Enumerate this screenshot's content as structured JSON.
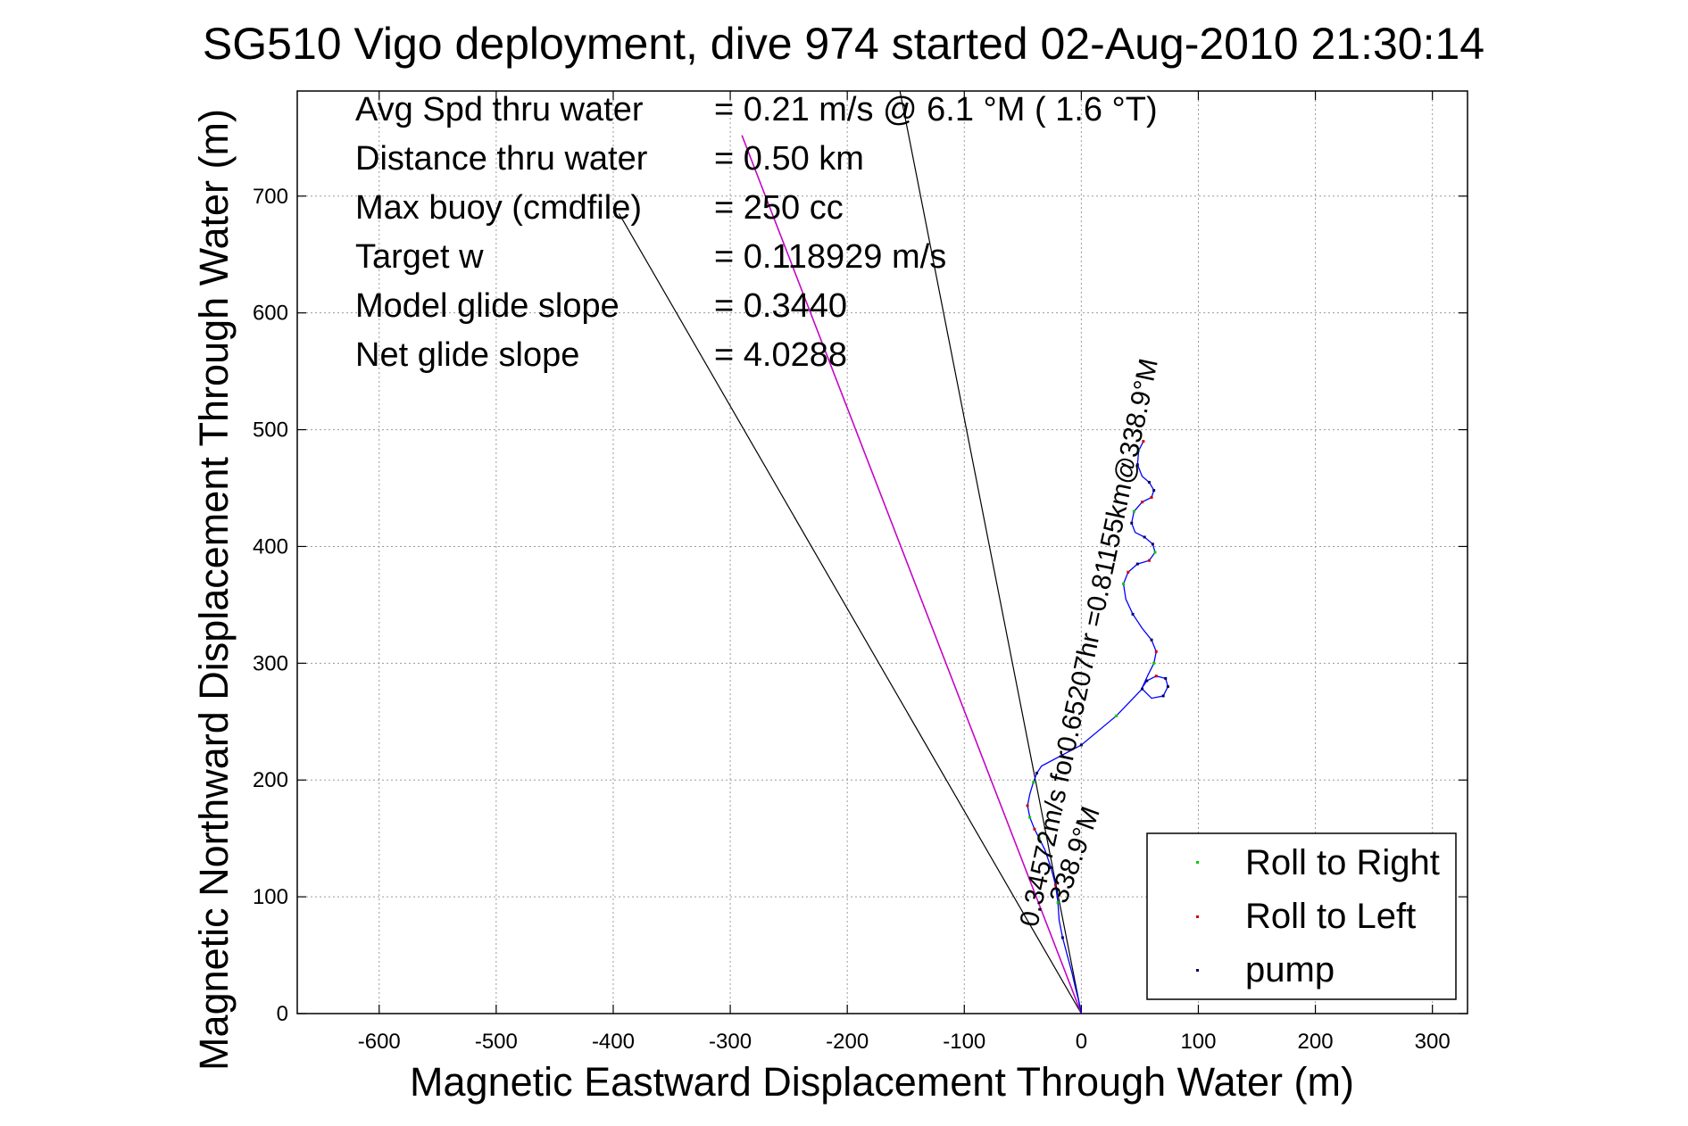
{
  "chart_data": {
    "type": "scatter",
    "title": "SG510 Vigo deployment, dive 974 started 02-Aug-2010 21:30:14",
    "xlabel": "Magnetic Eastward Displacement Through Water (m)",
    "ylabel": "Magnetic Northward Displacement Through Water (m)",
    "xlim": [
      -670,
      330
    ],
    "ylim": [
      0,
      790
    ],
    "xticks": [
      "-600",
      "-500",
      "-400",
      "-300",
      "-200",
      "-100",
      "0",
      "100",
      "200",
      "300"
    ],
    "yticks": [
      "0",
      "100",
      "200",
      "300",
      "400",
      "500",
      "600",
      "700"
    ],
    "grid": true,
    "legend_position": "bottom-right",
    "legend": [
      "Roll to Right",
      "Roll to Left",
      "pump"
    ],
    "colors": {
      "roll_right": "#00cc00",
      "roll_left": "#cc0000",
      "pump": "#000066",
      "track": "#0000ff",
      "heading_line": "#cc00cc",
      "ray": "#000000"
    },
    "info": [
      {
        "label": "Avg Spd thru water",
        "value": "=  0.21 m/s @   6.1 °M (  1.6 °T)"
      },
      {
        "label": "Distance thru water",
        "value": "=  0.50 km"
      },
      {
        "label": "Max buoy (cmdfile)",
        "value": "= 250 cc"
      },
      {
        "label": "Target w",
        "value": "= 0.118929 m/s"
      },
      {
        "label": "Model glide slope",
        "value": "= 0.3440"
      },
      {
        "label": "Net glide slope",
        "value": "= 4.0288"
      }
    ],
    "annotations": {
      "heading_label": "338.9°M",
      "current_label": "0.34572m/s for0.65207hr =0.81155km@338.9°M"
    },
    "rays": [
      {
        "from": [
          0,
          0
        ],
        "to": [
          -395,
          685
        ]
      },
      {
        "from": [
          0,
          0
        ],
        "to": [
          -155,
          790
        ]
      },
      {
        "from": [
          0,
          0
        ],
        "to": [
          -290,
          752
        ]
      }
    ],
    "heading_line": {
      "from": [
        0,
        0
      ],
      "to": [
        -290,
        752
      ]
    },
    "track": [
      [
        0,
        0
      ],
      [
        -2,
        10
      ],
      [
        -5,
        22
      ],
      [
        -8,
        35
      ],
      [
        -12,
        50
      ],
      [
        -16,
        65
      ],
      [
        -19,
        80
      ],
      [
        -20,
        95
      ],
      [
        -22,
        110
      ],
      [
        -26,
        125
      ],
      [
        -31,
        140
      ],
      [
        -36,
        150
      ],
      [
        -40,
        158
      ],
      [
        -44,
        168
      ],
      [
        -46,
        178
      ],
      [
        -44,
        188
      ],
      [
        -41,
        198
      ],
      [
        -38,
        206
      ],
      [
        -34,
        212
      ],
      [
        0,
        230
      ],
      [
        30,
        255
      ],
      [
        52,
        278
      ],
      [
        60,
        270
      ],
      [
        70,
        272
      ],
      [
        74,
        280
      ],
      [
        72,
        287
      ],
      [
        64,
        289
      ],
      [
        56,
        285
      ],
      [
        52,
        279
      ],
      [
        57,
        290
      ],
      [
        62,
        300
      ],
      [
        64,
        310
      ],
      [
        60,
        320
      ],
      [
        52,
        330
      ],
      [
        44,
        342
      ],
      [
        38,
        355
      ],
      [
        36,
        368
      ],
      [
        40,
        378
      ],
      [
        48,
        385
      ],
      [
        58,
        388
      ],
      [
        63,
        395
      ],
      [
        61,
        402
      ],
      [
        54,
        408
      ],
      [
        46,
        412
      ],
      [
        43,
        420
      ],
      [
        45,
        430
      ],
      [
        52,
        438
      ],
      [
        60,
        442
      ],
      [
        62,
        448
      ],
      [
        58,
        455
      ],
      [
        52,
        460
      ],
      [
        48,
        470
      ],
      [
        49,
        482
      ],
      [
        53,
        490
      ]
    ],
    "roll_right_points": [
      [
        -20,
        95
      ],
      [
        -36,
        150
      ],
      [
        -44,
        168
      ],
      [
        -41,
        198
      ],
      [
        30,
        255
      ],
      [
        62,
        300
      ],
      [
        36,
        368
      ],
      [
        63,
        395
      ],
      [
        45,
        430
      ],
      [
        49,
        482
      ]
    ],
    "roll_left_points": [
      [
        -22,
        110
      ],
      [
        -40,
        158
      ],
      [
        -46,
        178
      ],
      [
        64,
        289
      ],
      [
        64,
        310
      ],
      [
        40,
        378
      ],
      [
        58,
        388
      ],
      [
        52,
        438
      ],
      [
        60,
        442
      ],
      [
        53,
        490
      ]
    ],
    "pump_points": [
      [
        -16,
        65
      ],
      [
        -26,
        125
      ],
      [
        -38,
        206
      ],
      [
        0,
        230
      ],
      [
        52,
        278
      ],
      [
        70,
        272
      ],
      [
        74,
        280
      ],
      [
        72,
        287
      ],
      [
        56,
        285
      ],
      [
        60,
        320
      ],
      [
        44,
        342
      ],
      [
        48,
        385
      ],
      [
        61,
        402
      ],
      [
        54,
        408
      ],
      [
        43,
        420
      ],
      [
        62,
        448
      ],
      [
        58,
        455
      ],
      [
        48,
        470
      ]
    ]
  }
}
